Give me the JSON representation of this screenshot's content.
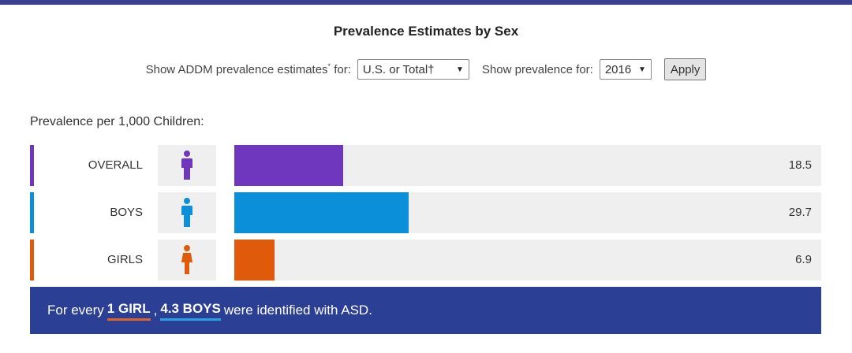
{
  "header": {
    "title": "Prevalence Estimates by Sex"
  },
  "controls": {
    "region_label": "Show ADDM prevalence estimates",
    "region_label_mark": "*",
    "region_label_suffix": "for:",
    "region_value": "U.S. or Total†",
    "year_label": "Show prevalence for:",
    "year_value": "2016",
    "apply_label": "Apply"
  },
  "chart_data": {
    "type": "bar",
    "orientation": "horizontal",
    "subtitle": "Prevalence per 1,000 Children:",
    "categories": [
      "OVERALL",
      "BOYS",
      "GIRLS"
    ],
    "values": [
      18.5,
      29.7,
      6.9
    ],
    "value_labels": [
      "18.5",
      "29.7",
      "6.9"
    ],
    "colors": [
      "#6f36be",
      "#0a8fd8",
      "#e05a0c"
    ],
    "icons": [
      "person-icon",
      "male-person-icon",
      "female-person-icon"
    ],
    "xlim": [
      0,
      100
    ],
    "grid": false,
    "legend": "none"
  },
  "banner": {
    "prefix": "For every",
    "girl_text": "1 GIRL",
    "sep": ",",
    "boys_text": "4.3 BOYS",
    "suffix": "were identified with ASD."
  }
}
